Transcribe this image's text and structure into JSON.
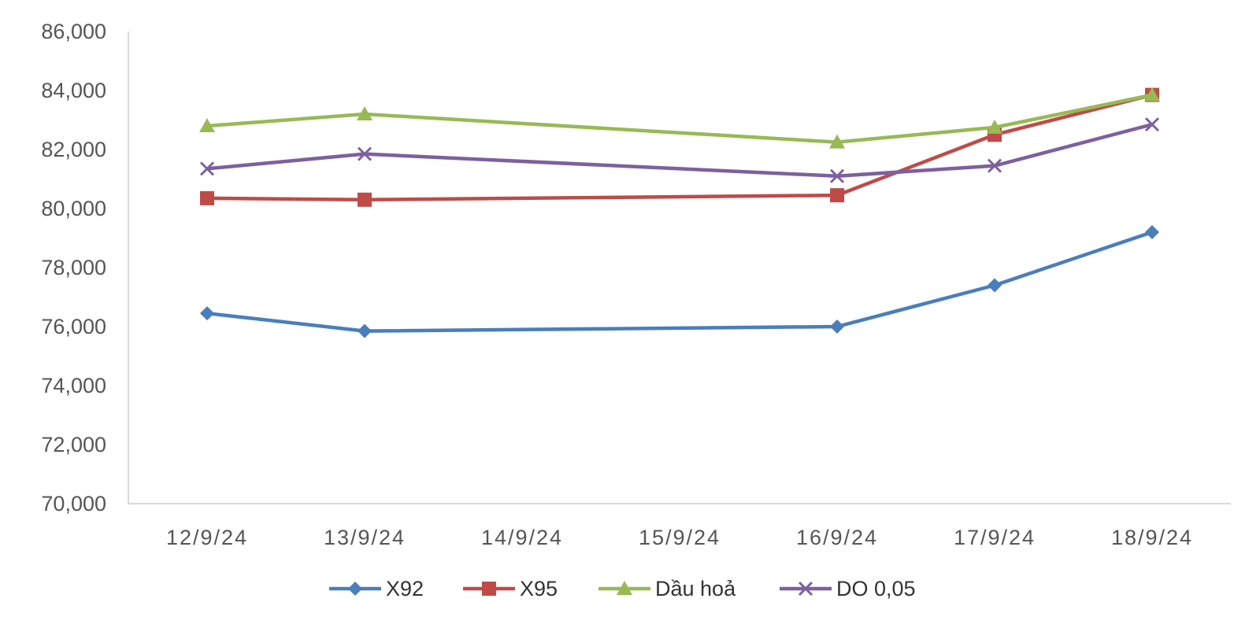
{
  "chart_data": {
    "type": "line",
    "categories": [
      "12/9/24",
      "13/9/24",
      "14/9/24",
      "15/9/24",
      "16/9/24",
      "17/9/24",
      "18/9/24"
    ],
    "ylim": [
      70000,
      86000
    ],
    "yticks": [
      70000,
      72000,
      74000,
      76000,
      78000,
      80000,
      82000,
      84000,
      86000
    ],
    "ytick_labels": [
      "70,000",
      "72,000",
      "74,000",
      "76,000",
      "78,000",
      "80,000",
      "82,000",
      "84,000",
      "86,000"
    ],
    "grid": false,
    "legend_position": "bottom",
    "series": [
      {
        "name": "X92",
        "color": "#4a7ebb",
        "marker": "diamond",
        "values": [
          76450,
          75850,
          null,
          null,
          76000,
          77400,
          79200
        ]
      },
      {
        "name": "X95",
        "color": "#be4b48",
        "marker": "square",
        "values": [
          80350,
          80300,
          null,
          null,
          80450,
          82500,
          83850
        ]
      },
      {
        "name": "Dầu hoả",
        "color": "#98b954",
        "marker": "triangle",
        "values": [
          82800,
          83200,
          null,
          null,
          82250,
          82750,
          83850
        ]
      },
      {
        "name": "DO 0,05",
        "color": "#7d60a0",
        "marker": "x",
        "values": [
          81350,
          81850,
          null,
          null,
          81100,
          81450,
          82850
        ]
      }
    ]
  }
}
